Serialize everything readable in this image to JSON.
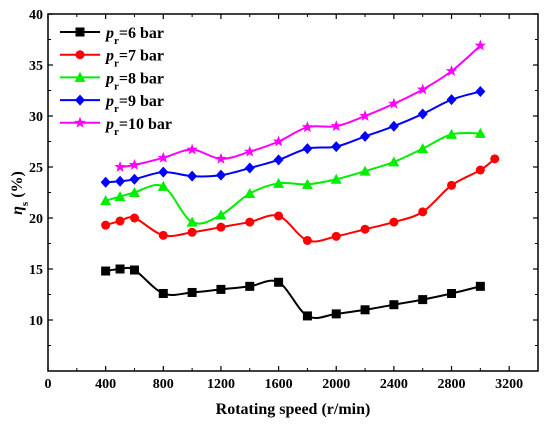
{
  "chart_data": {
    "type": "line",
    "xlabel": "Rotating speed (r/min)",
    "ylabel": "ηs (%)",
    "xlim": [
      0,
      3400
    ],
    "ylim": [
      5,
      40
    ],
    "xticks": [
      "0",
      "400",
      "800",
      "1200",
      "1600",
      "2000",
      "2400",
      "2800",
      "3200"
    ],
    "yticks": [
      "10",
      "15",
      "20",
      "25",
      "30",
      "35",
      "40"
    ],
    "legend_position": "top-left",
    "series": [
      {
        "name": "pr=6 bar",
        "legend_symbol": "p",
        "legend_subscript": "r",
        "legend_suffix": "=6 bar",
        "color": "#000000",
        "marker": "square",
        "x": [
          400,
          500,
          600,
          800,
          1000,
          1200,
          1400,
          1600,
          1800,
          2000,
          2200,
          2400,
          2600,
          2800,
          3000
        ],
        "y": [
          14.8,
          15.0,
          14.9,
          12.6,
          12.7,
          13.0,
          13.3,
          13.7,
          10.4,
          10.6,
          11.0,
          11.5,
          12.0,
          12.6,
          13.3
        ]
      },
      {
        "name": "pr=7 bar",
        "legend_symbol": "p",
        "legend_subscript": "r",
        "legend_suffix": "=7 bar",
        "color": "#ff0000",
        "marker": "circle",
        "x": [
          400,
          500,
          600,
          800,
          1000,
          1200,
          1400,
          1600,
          1800,
          2000,
          2200,
          2400,
          2600,
          2800,
          3000,
          3100
        ],
        "y": [
          19.3,
          19.7,
          20.0,
          18.3,
          18.6,
          19.1,
          19.6,
          20.2,
          17.8,
          18.2,
          18.9,
          19.6,
          20.6,
          23.2,
          24.7,
          25.8
        ]
      },
      {
        "name": "pr=8 bar",
        "legend_symbol": "p",
        "legend_subscript": "r",
        "legend_suffix": "=8 bar",
        "color": "#00ee00",
        "marker": "triangle",
        "x": [
          400,
          500,
          600,
          800,
          1000,
          1200,
          1400,
          1600,
          1800,
          2000,
          2200,
          2400,
          2600,
          2800,
          3000
        ],
        "y": [
          21.7,
          22.1,
          22.5,
          23.1,
          19.6,
          20.3,
          22.4,
          23.4,
          23.3,
          23.8,
          24.6,
          25.5,
          26.8,
          28.2,
          28.3
        ]
      },
      {
        "name": "pr=9 bar",
        "legend_symbol": "p",
        "legend_subscript": "r",
        "legend_suffix": "=9 bar",
        "color": "#0000ff",
        "marker": "diamond",
        "x": [
          400,
          500,
          600,
          800,
          1000,
          1200,
          1400,
          1600,
          1800,
          2000,
          2200,
          2400,
          2600,
          2800,
          3000
        ],
        "y": [
          23.5,
          23.6,
          23.8,
          24.5,
          24.1,
          24.2,
          24.9,
          25.7,
          26.8,
          27.0,
          28.0,
          29.0,
          30.2,
          31.6,
          32.4
        ]
      },
      {
        "name": "pr=10 bar",
        "legend_symbol": "p",
        "legend_subscript": "r",
        "legend_suffix": "=10 bar",
        "color": "#ff00ff",
        "marker": "star",
        "x": [
          500,
          600,
          800,
          1000,
          1200,
          1400,
          1600,
          1800,
          2000,
          2200,
          2400,
          2600,
          2800,
          3000
        ],
        "y": [
          25.0,
          25.2,
          25.9,
          26.7,
          25.8,
          26.5,
          27.5,
          28.9,
          29.0,
          30.0,
          31.2,
          32.6,
          34.4,
          36.9
        ]
      }
    ]
  }
}
